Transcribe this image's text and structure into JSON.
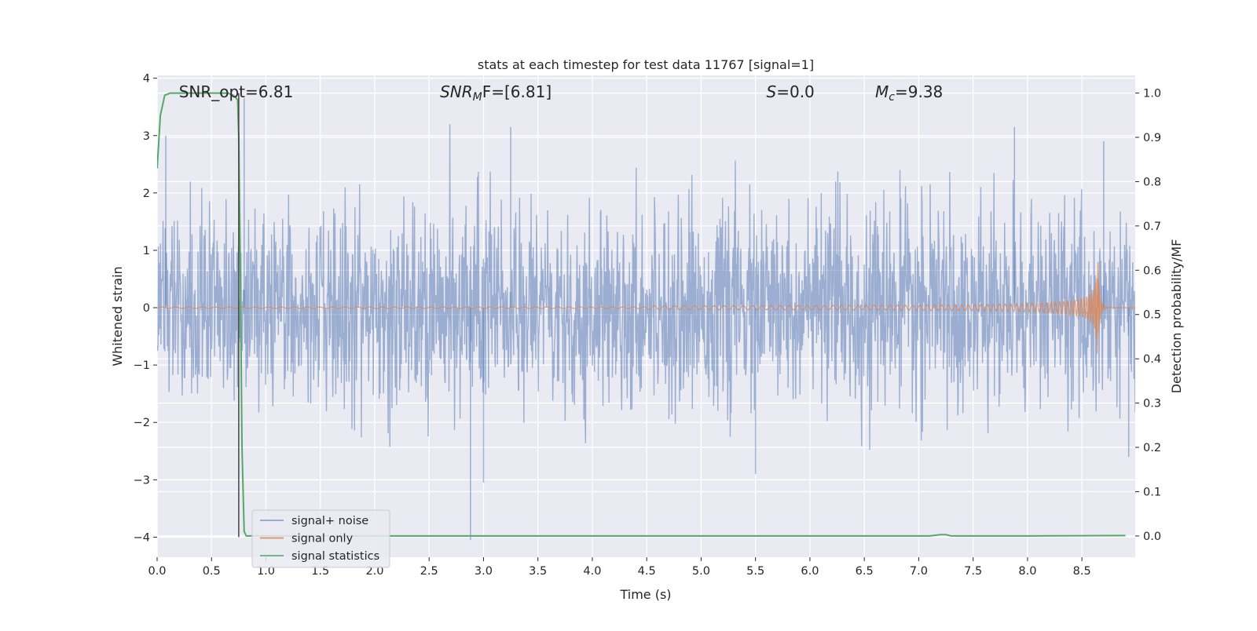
{
  "chart_data": {
    "type": "line",
    "title": "stats at each timestep for test data 11767 [signal=1]",
    "xlabel": "Time (s)",
    "ylabel": "Whitened strain",
    "ylabel_right": "Detection probability/MF",
    "xlim": [
      0.0,
      8.99
    ],
    "ylim": [
      -4.35,
      4.05
    ],
    "ylim_right": [
      -0.048,
      1.04
    ],
    "x_ticks": [
      "0.0",
      "0.5",
      "1.0",
      "1.5",
      "2.0",
      "2.5",
      "3.0",
      "3.5",
      "4.0",
      "4.5",
      "5.0",
      "5.5",
      "6.0",
      "6.5",
      "7.0",
      "7.5",
      "8.0",
      "8.5"
    ],
    "y_ticks": [
      "4",
      "3",
      "2",
      "1",
      "0",
      "−1",
      "−2",
      "−3",
      "−4"
    ],
    "y_right_ticks": [
      "1.0",
      "0.9",
      "0.8",
      "0.7",
      "0.6",
      "0.5",
      "0.4",
      "0.3",
      "0.2",
      "0.1",
      "0.0"
    ],
    "grid": true,
    "legend_position": "lower-left",
    "annotations": [
      {
        "base": "SNR_opt=6.81",
        "sub": "",
        "tail": "",
        "x": 0.2,
        "italic": false
      },
      {
        "base": "SNR",
        "sub": "M",
        "tail": "F=[6.81]",
        "x": 2.6,
        "italic": true
      },
      {
        "base": "S",
        "sub": "",
        "tail": "=0.0",
        "x": 5.6,
        "italic": true
      },
      {
        "base": "M",
        "sub": "c",
        "tail": "=9.38",
        "x": 6.6,
        "italic": true
      }
    ],
    "vertical_marker_x": 0.75,
    "series": [
      {
        "name": "signal+ noise",
        "color": "#4c72b0",
        "opacity": 0.5,
        "description": "whitened noisy strain, approx. unit-variance noise with peaks near ±3",
        "noise_std": 0.85,
        "notable_peaks": [
          [
            0.08,
            3.0
          ],
          [
            0.8,
            3.65
          ],
          [
            3.25,
            3.15
          ],
          [
            7.88,
            3.15
          ],
          [
            8.7,
            2.9
          ],
          [
            2.88,
            -4.05
          ],
          [
            3.0,
            -3.05
          ],
          [
            5.5,
            -2.9
          ],
          [
            8.93,
            -2.6
          ]
        ]
      },
      {
        "name": "signal only",
        "color": "#dd8452",
        "description": "chirp waveform whose amplitude grows until merger near t = 8.65 s",
        "amplitude_start": 0.01,
        "amplitude_peak": 0.95,
        "merger_time": 8.65,
        "chirp_start": 4.5
      },
      {
        "name": "signal statistics",
        "color": "#55a868",
        "axis": "right",
        "x": [
          0.0,
          0.03,
          0.07,
          0.12,
          0.2,
          0.3,
          0.4,
          0.5,
          0.6,
          0.65,
          0.7,
          0.74,
          0.75,
          0.765,
          0.78,
          0.8,
          0.82,
          0.9,
          1.0,
          2.0,
          3.0,
          4.0,
          5.0,
          6.0,
          7.0,
          7.1,
          7.2,
          7.25,
          7.3,
          7.35,
          8.0,
          8.9
        ],
        "y": [
          0.83,
          0.95,
          0.995,
          1.0,
          1.0,
          1.0,
          1.0,
          1.0,
          1.0,
          1.0,
          0.995,
          0.985,
          0.9,
          0.6,
          0.2,
          0.01,
          0.0,
          0.0,
          0.0,
          0.0,
          0.0,
          0.0,
          0.0,
          0.0,
          0.0,
          0.0,
          0.003,
          0.003,
          0.0,
          0.0,
          0.0,
          0.001
        ]
      }
    ]
  }
}
